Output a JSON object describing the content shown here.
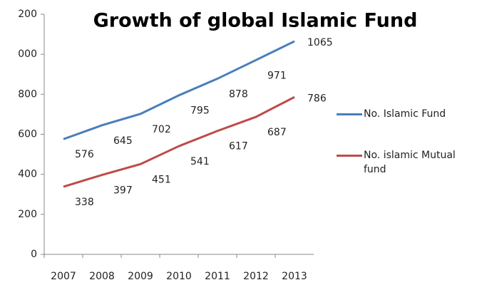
{
  "chart_data": {
    "type": "line",
    "title": "Growth of global Islamic Fund",
    "categories": [
      "2007",
      "2008",
      "2009",
      "2010",
      "2011",
      "2012",
      "2013"
    ],
    "series": [
      {
        "name": "No. Islamic Fund",
        "color": "#4a7ebb",
        "values": [
          576,
          645,
          702,
          795,
          878,
          971,
          1065
        ]
      },
      {
        "name": "No. islamic Mutual fund",
        "color": "#be4b48",
        "values": [
          338,
          397,
          451,
          541,
          617,
          687,
          786
        ]
      }
    ],
    "ylim": [
      0,
      1200
    ],
    "yticks": [
      0,
      200,
      400,
      600,
      800,
      {
        "value": 1000,
        "label": "000"
      },
      {
        "value": 1200,
        "label": "200"
      }
    ],
    "grid": false,
    "legend": "right"
  }
}
